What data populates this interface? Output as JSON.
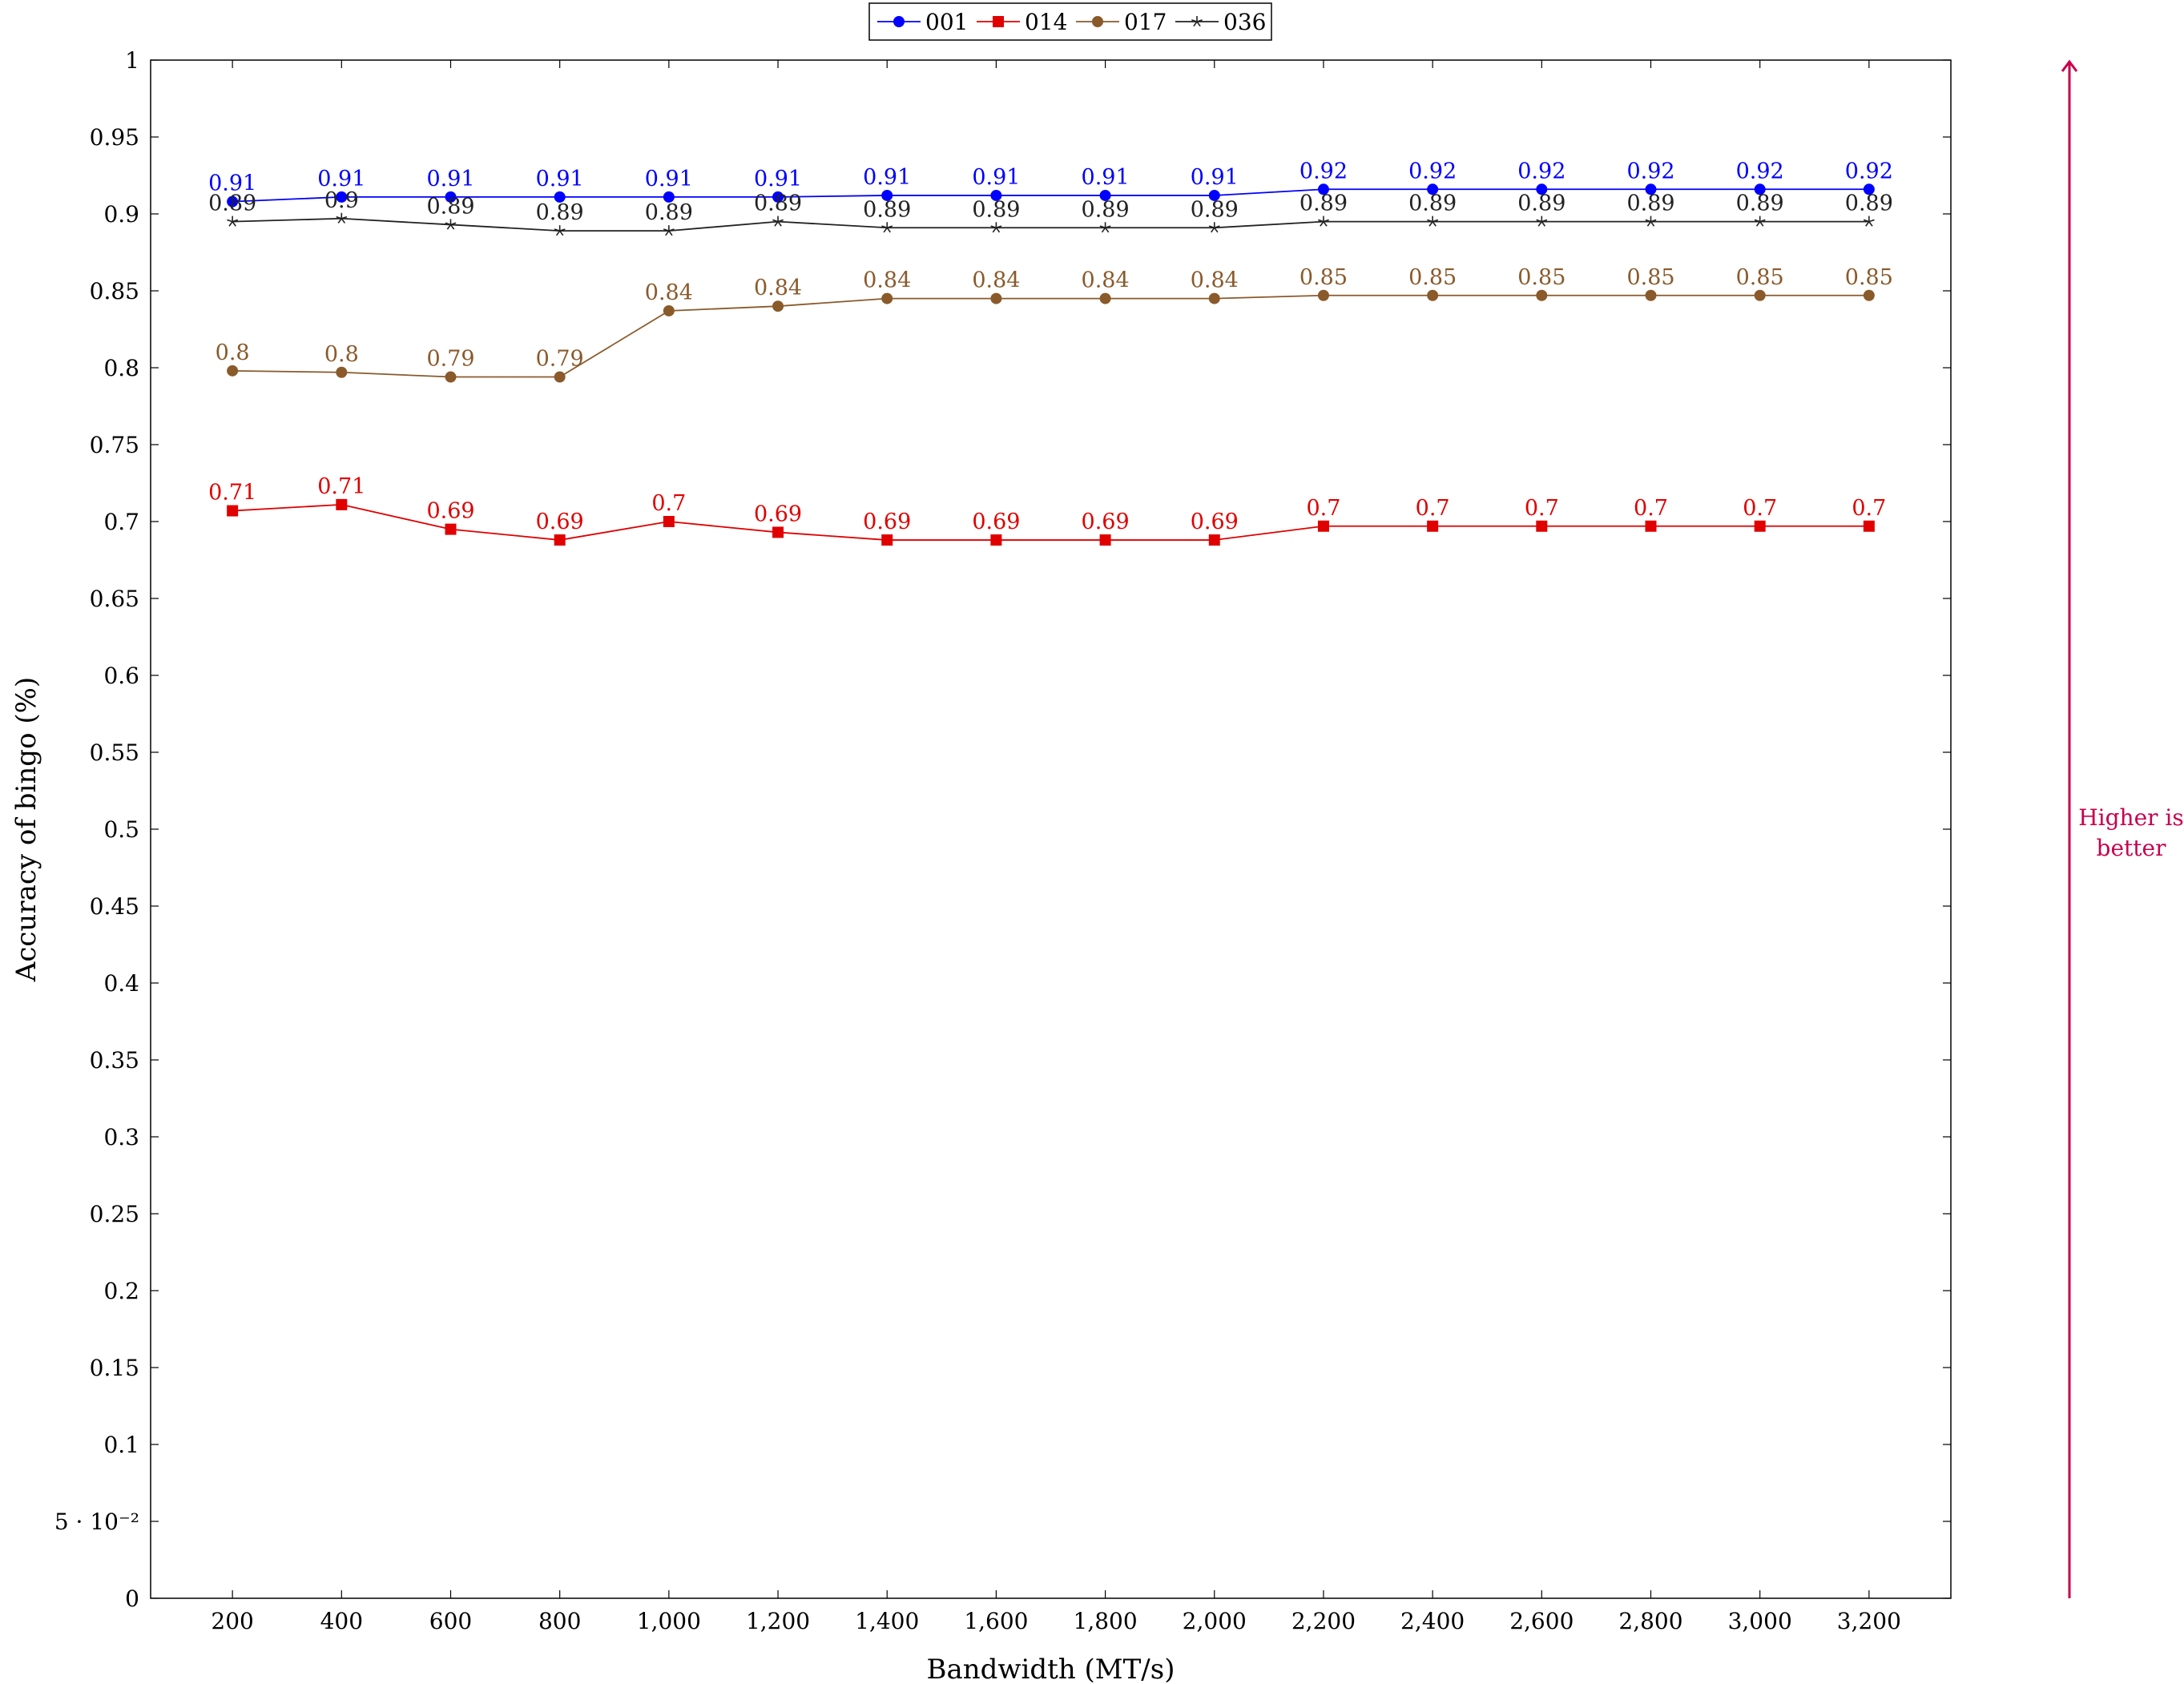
{
  "chart_data": {
    "type": "line",
    "xlabel": "Bandwidth (MT/s)",
    "ylabel": "Accuracy of bingo (%)",
    "xlim": [
      50,
      3350
    ],
    "ylim": [
      0,
      1
    ],
    "x": [
      200,
      400,
      600,
      800,
      1000,
      1200,
      1400,
      1600,
      1800,
      2000,
      2200,
      2400,
      2600,
      2800,
      3000,
      3200
    ],
    "x_tick_labels": [
      "200",
      "400",
      "600",
      "800",
      "1,000",
      "1,200",
      "1,400",
      "1,600",
      "1,800",
      "2,000",
      "2,200",
      "2,400",
      "2,600",
      "2,800",
      "3,000",
      "3,200"
    ],
    "y_ticks": [
      0,
      0.05,
      0.1,
      0.15,
      0.2,
      0.25,
      0.3,
      0.35,
      0.4,
      0.45,
      0.5,
      0.55,
      0.6,
      0.65,
      0.7,
      0.75,
      0.8,
      0.85,
      0.9,
      0.95,
      1
    ],
    "y_tick_labels": [
      "0",
      "5 · 10⁻²",
      "0.1",
      "0.15",
      "0.2",
      "0.25",
      "0.3",
      "0.35",
      "0.4",
      "0.45",
      "0.5",
      "0.55",
      "0.6",
      "0.65",
      "0.7",
      "0.75",
      "0.8",
      "0.85",
      "0.9",
      "0.95",
      "1"
    ],
    "grid": false,
    "legend_position": "top-center",
    "series": [
      {
        "name": "001",
        "color": "#0000ff",
        "marker": "circle",
        "values": [
          0.908,
          0.911,
          0.911,
          0.911,
          0.911,
          0.911,
          0.912,
          0.912,
          0.912,
          0.912,
          0.916,
          0.916,
          0.916,
          0.916,
          0.916,
          0.916
        ],
        "labels": [
          "0.91",
          "0.91",
          "0.91",
          "0.91",
          "0.91",
          "0.91",
          "0.91",
          "0.91",
          "0.91",
          "0.91",
          "0.92",
          "0.92",
          "0.92",
          "0.92",
          "0.92",
          "0.92"
        ]
      },
      {
        "name": "014",
        "color": "#e00000",
        "marker": "square",
        "values": [
          0.707,
          0.711,
          0.695,
          0.688,
          0.7,
          0.693,
          0.688,
          0.688,
          0.688,
          0.688,
          0.697,
          0.697,
          0.697,
          0.697,
          0.697,
          0.697
        ],
        "labels": [
          "0.71",
          "0.71",
          "0.69",
          "0.69",
          "0.7",
          "0.69",
          "0.69",
          "0.69",
          "0.69",
          "0.69",
          "0.7",
          "0.7",
          "0.7",
          "0.7",
          "0.7",
          "0.7"
        ]
      },
      {
        "name": "017",
        "color": "#8a5a2b",
        "marker": "circle",
        "values": [
          0.798,
          0.797,
          0.794,
          0.794,
          0.837,
          0.84,
          0.845,
          0.845,
          0.845,
          0.845,
          0.847,
          0.847,
          0.847,
          0.847,
          0.847,
          0.847
        ],
        "labels": [
          "0.8",
          "0.8",
          "0.79",
          "0.79",
          "0.84",
          "0.84",
          "0.84",
          "0.84",
          "0.84",
          "0.84",
          "0.85",
          "0.85",
          "0.85",
          "0.85",
          "0.85",
          "0.85"
        ]
      },
      {
        "name": "036",
        "color": "#222222",
        "marker": "star",
        "values": [
          0.895,
          0.897,
          0.893,
          0.889,
          0.889,
          0.895,
          0.891,
          0.891,
          0.891,
          0.891,
          0.895,
          0.895,
          0.895,
          0.895,
          0.895,
          0.895
        ],
        "labels": [
          "0.89",
          "0.9",
          "0.89",
          "0.89",
          "0.89",
          "0.89",
          "0.89",
          "0.89",
          "0.89",
          "0.89",
          "0.89",
          "0.89",
          "0.89",
          "0.89",
          "0.89",
          "0.89"
        ]
      }
    ],
    "annotation": {
      "text_lines": [
        "Higher is",
        "better"
      ],
      "color": "#c8004e"
    }
  }
}
